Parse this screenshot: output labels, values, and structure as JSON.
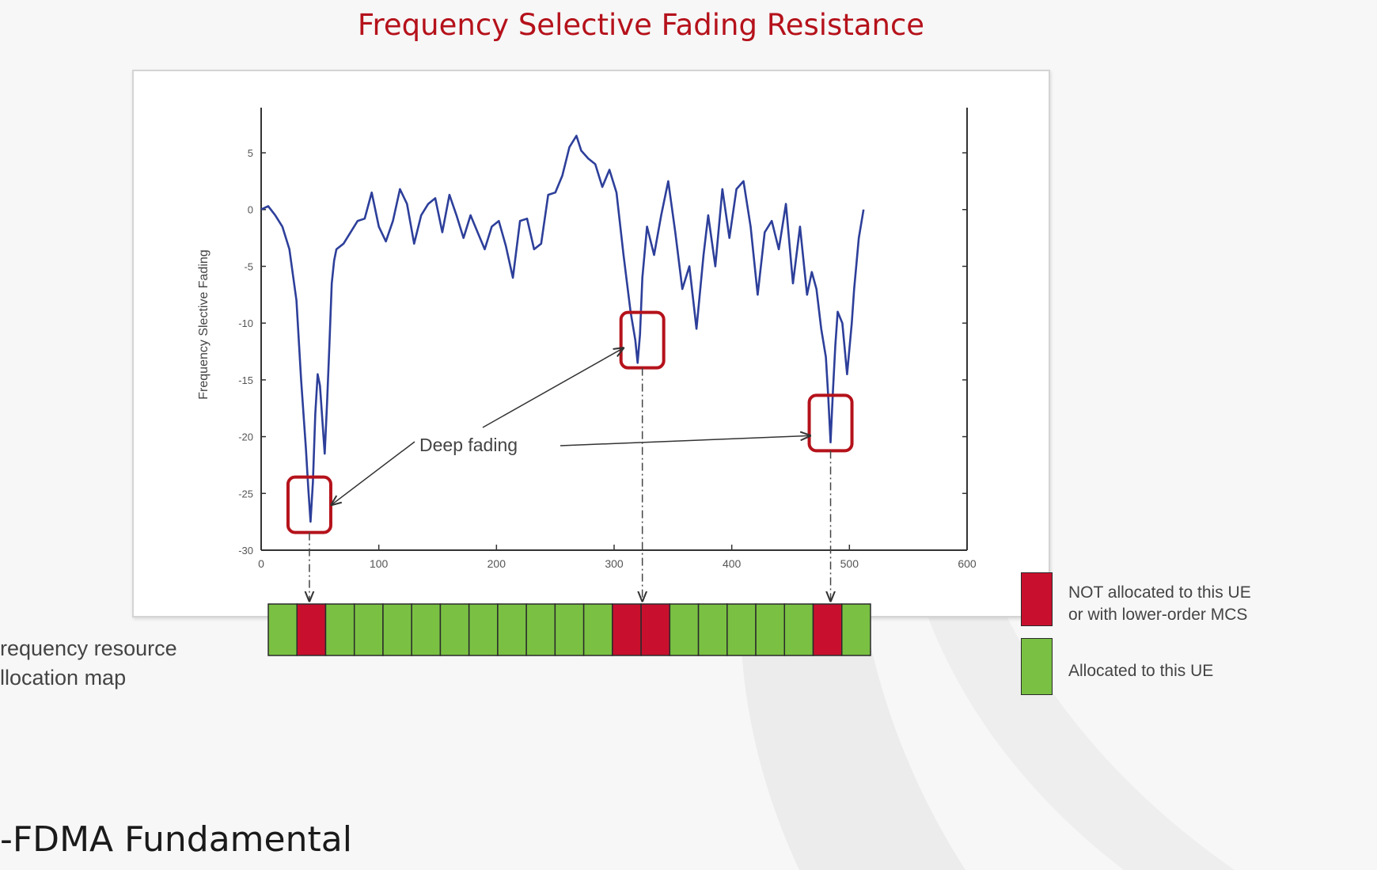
{
  "slide": {
    "title": "Frequency Selective Fading Resistance",
    "bottom_title": "-FDMA Fundamental"
  },
  "chart_data": {
    "type": "line",
    "title": "",
    "xlabel": "",
    "ylabel": "Frequency Slective Fading",
    "xlim": [
      0,
      600
    ],
    "ylim": [
      -30,
      8
    ],
    "x_ticks": [
      "0",
      "100",
      "200",
      "300",
      "400",
      "500",
      "600"
    ],
    "y_ticks": [
      "5",
      "0",
      "-5",
      "-10",
      "-15",
      "-20",
      "-25",
      "-30"
    ],
    "series": [
      {
        "color": "#2d3f9a",
        "x": [
          0,
          6,
          12,
          18,
          24,
          30,
          34,
          38,
          40,
          42,
          44,
          46,
          48,
          50,
          52,
          54,
          56,
          58,
          60,
          62,
          64,
          70,
          76,
          82,
          88,
          94,
          100,
          106,
          112,
          118,
          124,
          130,
          136,
          142,
          148,
          154,
          160,
          166,
          172,
          178,
          184,
          190,
          196,
          202,
          208,
          214,
          220,
          226,
          232,
          238,
          244,
          250,
          256,
          262,
          268,
          272,
          278,
          284,
          290,
          296,
          302,
          308,
          314,
          318,
          320,
          322,
          324,
          328,
          334,
          340,
          346,
          352,
          358,
          364,
          370,
          376,
          380,
          386,
          392,
          398,
          404,
          410,
          416,
          422,
          428,
          434,
          440,
          446,
          452,
          458,
          464,
          468,
          472,
          476,
          480,
          482,
          484,
          486,
          488,
          490,
          494,
          498,
          502,
          504,
          508,
          512
        ],
        "y": [
          0,
          0.3,
          -0.5,
          -1.5,
          -3.5,
          -8,
          -15,
          -21,
          -24.5,
          -27.5,
          -24,
          -18,
          -14.5,
          -15.5,
          -18.5,
          -21.5,
          -17,
          -12,
          -6.5,
          -4.5,
          -3.5,
          -3,
          -2,
          -1,
          -0.8,
          1.5,
          -1.5,
          -2.8,
          -1,
          1.8,
          0.5,
          -3,
          -0.5,
          0.5,
          1,
          -2,
          1.3,
          -0.5,
          -2.5,
          -0.5,
          -2,
          -3.5,
          -1.5,
          -1,
          -3.2,
          -6,
          -1,
          -0.8,
          -3.5,
          -3,
          1.3,
          1.5,
          3,
          5.5,
          6.5,
          5.2,
          4.5,
          4,
          2,
          3.5,
          1.5,
          -4,
          -9,
          -11.5,
          -13.5,
          -11,
          -6,
          -1.5,
          -4,
          -0.5,
          2.5,
          -2,
          -7,
          -5,
          -10.5,
          -4,
          -0.5,
          -5,
          1.8,
          -2.5,
          1.8,
          2.5,
          -1.5,
          -7.5,
          -2,
          -1,
          -3.5,
          0.5,
          -6.5,
          -1.5,
          -7.5,
          -5.5,
          -7,
          -10.5,
          -13,
          -16.5,
          -20.5,
          -16,
          -12,
          -9,
          -10,
          -14.5,
          -10,
          -7,
          -2.5,
          0
        ]
      }
    ],
    "annotations": {
      "deep_fading_label": "Deep fading",
      "deep_fading_points": [
        {
          "x": 41,
          "y": -26
        },
        {
          "x": 324,
          "y": -11.5
        },
        {
          "x": 484,
          "y": -18.8
        }
      ]
    },
    "allocation_map": {
      "label_line1": "requency resource",
      "label_line2": "llocation map",
      "cells": [
        "G",
        "R",
        "G",
        "G",
        "G",
        "G",
        "G",
        "G",
        "G",
        "G",
        "G",
        "G",
        "R",
        "R",
        "G",
        "G",
        "G",
        "G",
        "G",
        "R",
        "G"
      ],
      "colors": {
        "R": "#c8102e",
        "G": "#7ac143"
      }
    },
    "legend": [
      {
        "color": "#c8102e",
        "line1": "NOT allocated to this UE",
        "line2": "or with lower-order MCS"
      },
      {
        "color": "#7ac143",
        "line1": "Allocated to this UE",
        "line2": ""
      }
    ]
  }
}
